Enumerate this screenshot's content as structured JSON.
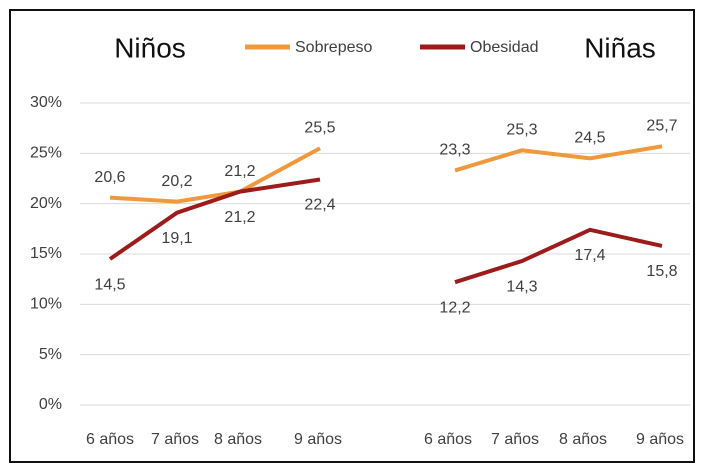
{
  "chart_data": [
    {
      "type": "line",
      "title": "Niños",
      "categories": [
        "6 años",
        "7 años",
        "8 años",
        "9 años"
      ],
      "ylim": [
        0,
        30
      ],
      "yticks": [
        {
          "value": 0,
          "label": "0%"
        },
        {
          "value": 5,
          "label": "5%"
        },
        {
          "value": 10,
          "label": "10%"
        },
        {
          "value": 15,
          "label": "15%"
        },
        {
          "value": 20,
          "label": "20%"
        },
        {
          "value": 25,
          "label": "25%"
        },
        {
          "value": 30,
          "label": "30%"
        }
      ],
      "grid": true,
      "series": [
        {
          "name": "Sobrepeso",
          "color": "#f0983c",
          "values": [
            20.6,
            20.2,
            21.2,
            25.5
          ],
          "value_labels": [
            "20,6",
            "20,2",
            "21,2",
            "25,5"
          ]
        },
        {
          "name": "Obesidad",
          "color": "#9c1c1c",
          "values": [
            14.5,
            19.1,
            21.2,
            22.4
          ],
          "value_labels": [
            "14,5",
            "19,1",
            "21,2",
            "22,4"
          ]
        }
      ]
    },
    {
      "type": "line",
      "title": "Niñas",
      "categories": [
        "6 años",
        "7 años",
        "8 años",
        "9 años"
      ],
      "ylim": [
        0,
        30
      ],
      "series": [
        {
          "color": "#f0983c",
          "values": [
            23.3,
            25.3,
            24.5,
            25.7
          ],
          "value_labels": [
            "23,3",
            "25,3",
            "24,5",
            "25,7"
          ]
        },
        {
          "color": "#9c1c1c",
          "values": [
            12.2,
            14.3,
            17.4,
            15.8
          ],
          "value_labels": [
            "12,2",
            "14,3",
            "17,4",
            "15,8"
          ]
        }
      ]
    }
  ]
}
